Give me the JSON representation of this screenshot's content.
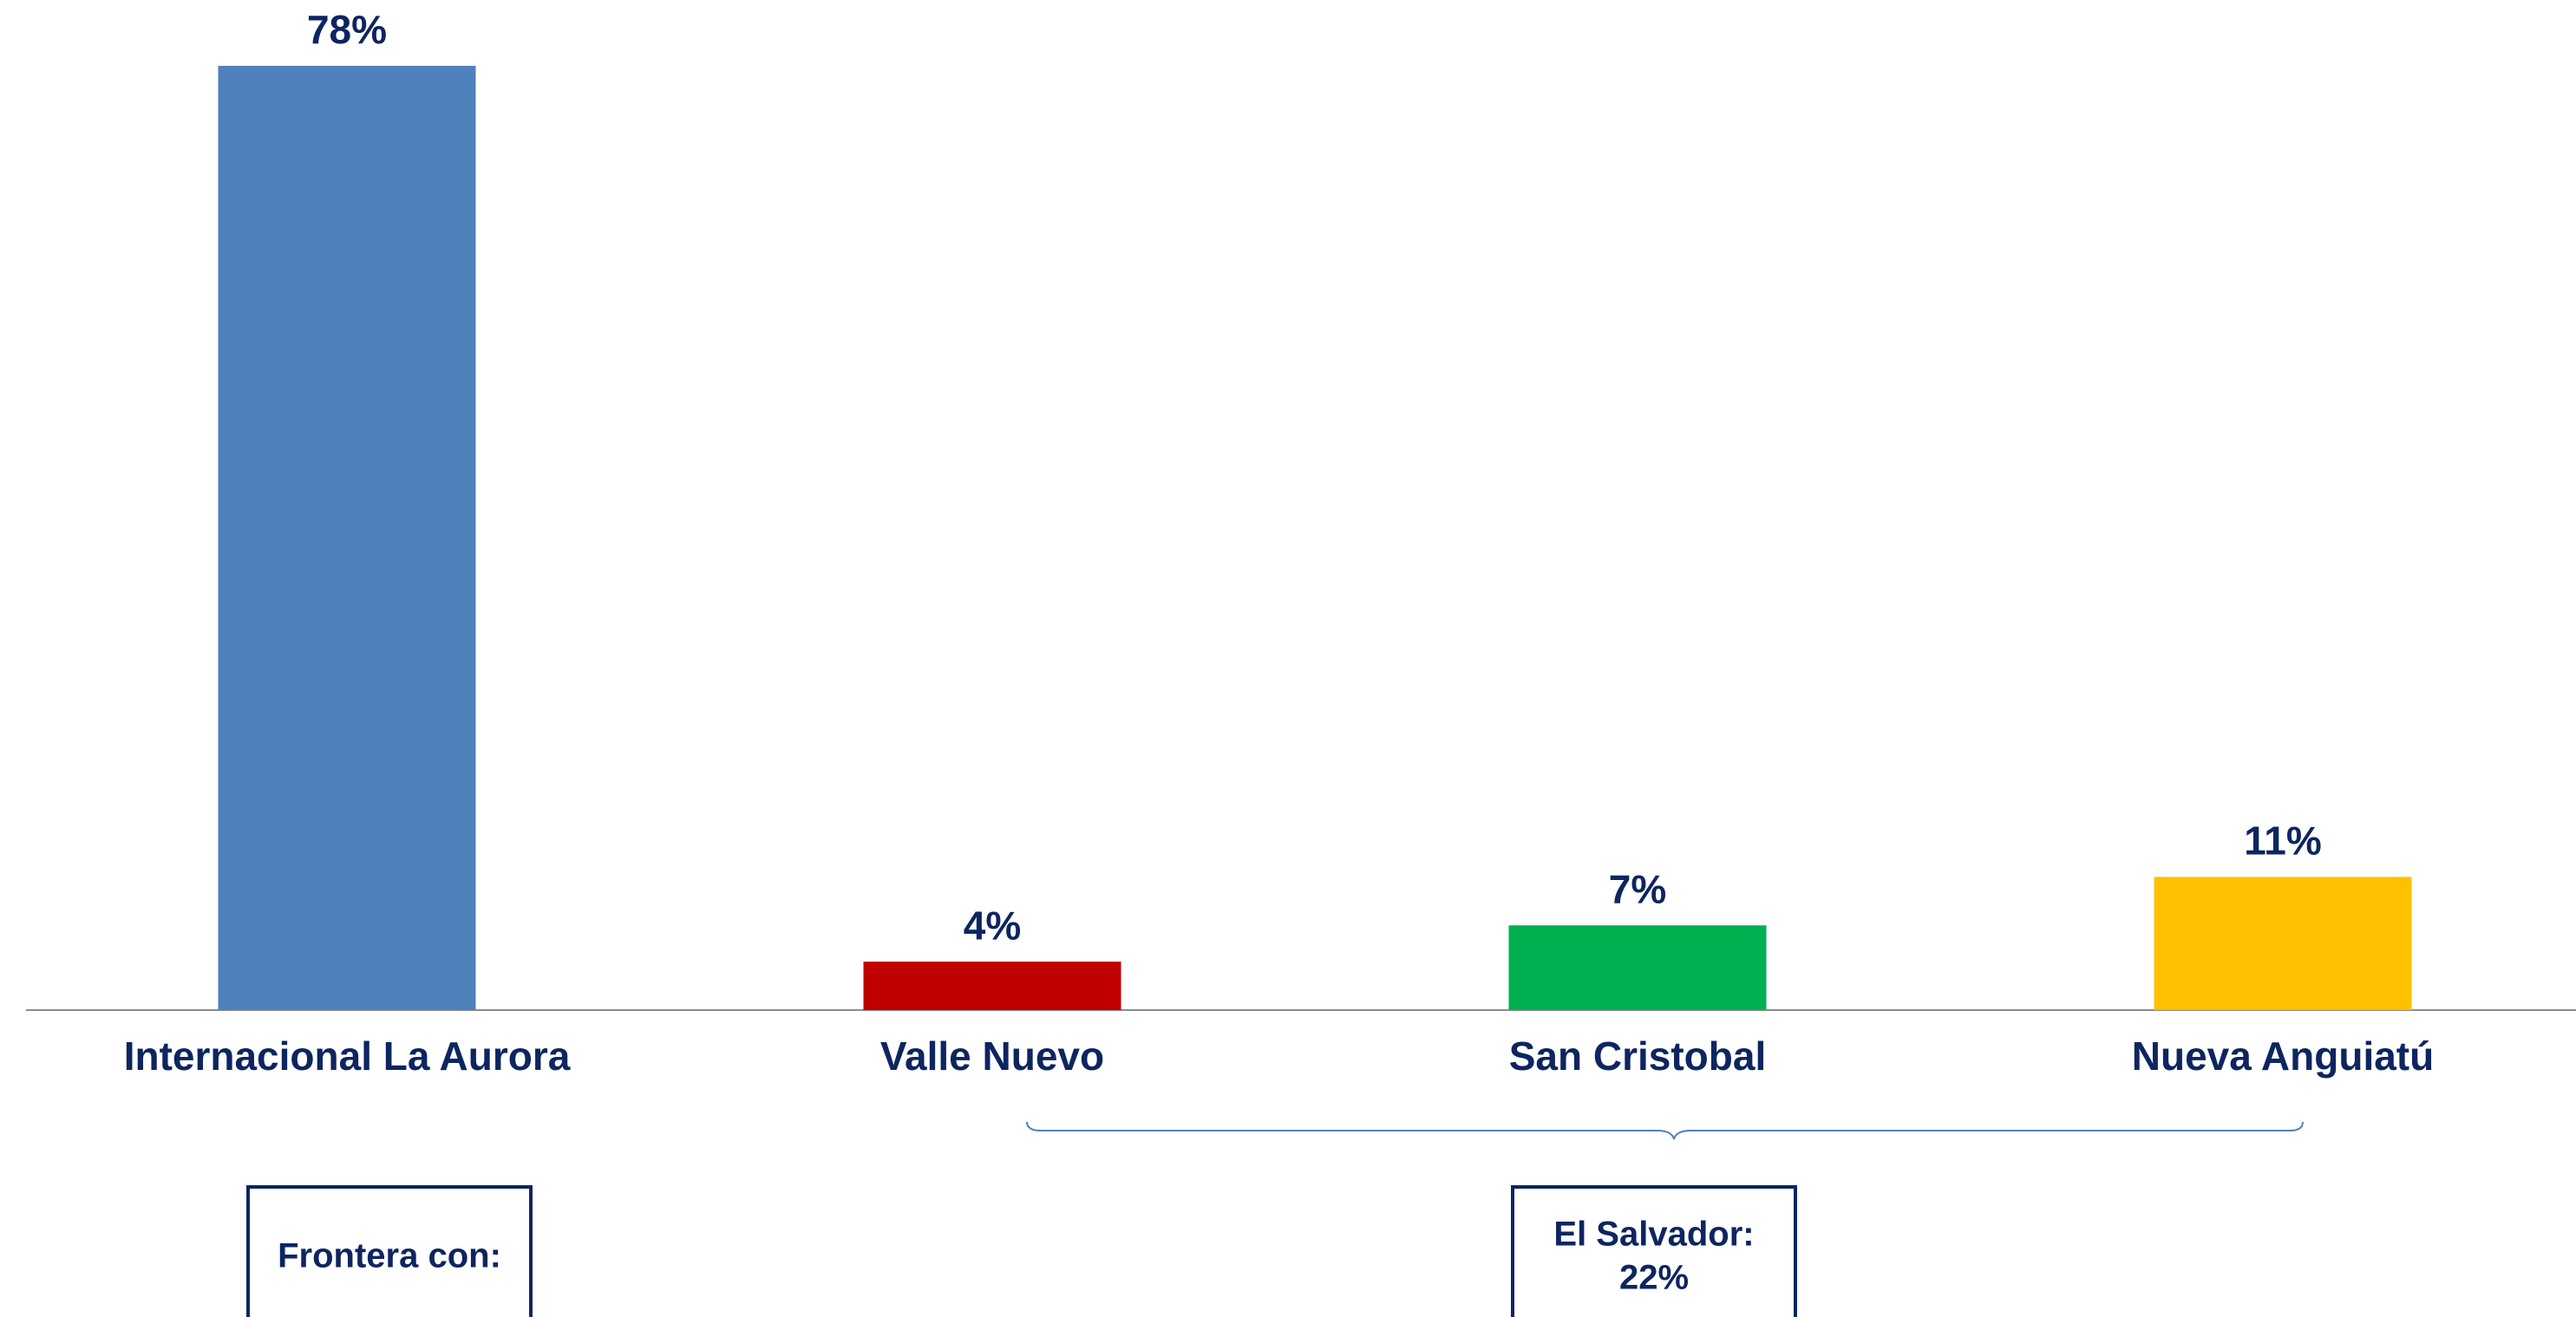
{
  "chart_data": {
    "type": "bar",
    "categories": [
      "Internacional La Aurora",
      "Valle Nuevo",
      "San Cristobal",
      "Nueva Anguiatú"
    ],
    "values": [
      78,
      4,
      7,
      11
    ],
    "value_labels": [
      "78%",
      "4%",
      "7%",
      "11%"
    ],
    "colors": [
      "#4f81bd",
      "#c00000",
      "#00b050",
      "#ffc000"
    ],
    "ylim": [
      0,
      80
    ],
    "grid": false,
    "annotations": [
      {
        "lines": [
          "Frontera con:"
        ]
      },
      {
        "lines": [
          "El Salvador:",
          "22%"
        ]
      }
    ]
  }
}
